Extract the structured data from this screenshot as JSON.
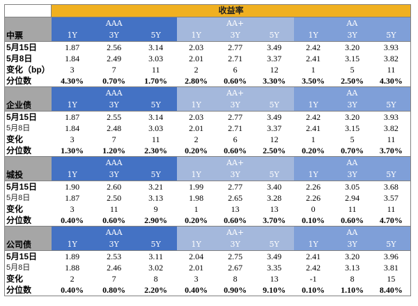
{
  "title": "收益率",
  "grades": [
    "AAA",
    "AA+",
    "AA"
  ],
  "tenors": [
    "1Y",
    "3Y",
    "5Y"
  ],
  "sections": [
    {
      "name": "中票",
      "rows": [
        {
          "label": "5月15日",
          "bold": true,
          "values": [
            "1.87",
            "2.56",
            "3.14",
            "2.03",
            "2.77",
            "3.49",
            "2.42",
            "3.20",
            "3.93"
          ]
        },
        {
          "label": "5月8日",
          "bold": true,
          "values": [
            "1.84",
            "2.49",
            "3.03",
            "2.01",
            "2.71",
            "3.37",
            "2.41",
            "3.15",
            "3.82"
          ]
        },
        {
          "label": "变化（bp）",
          "bold": true,
          "values": [
            "3",
            "7",
            "11",
            "2",
            "6",
            "12",
            "1",
            "5",
            "11"
          ]
        },
        {
          "label": "分位数",
          "bold": true,
          "pct": true,
          "values": [
            "4.30%",
            "0.70%",
            "1.70%",
            "2.80%",
            "0.60%",
            "3.30%",
            "3.50%",
            "2.50%",
            "4.30%"
          ]
        }
      ]
    },
    {
      "name": "企业债",
      "rows": [
        {
          "label": "5月15日",
          "bold": true,
          "values": [
            "1.87",
            "2.55",
            "3.14",
            "2.03",
            "2.77",
            "3.49",
            "2.42",
            "3.20",
            "3.93"
          ]
        },
        {
          "label": "5月8日",
          "bold": false,
          "values": [
            "1.84",
            "2.48",
            "3.03",
            "2.01",
            "2.71",
            "3.37",
            "2.41",
            "3.15",
            "3.82"
          ]
        },
        {
          "label": "变化",
          "bold": true,
          "values": [
            "3",
            "7",
            "11",
            "2",
            "6",
            "12",
            "1",
            "5",
            "11"
          ]
        },
        {
          "label": "分位数",
          "bold": true,
          "pct": true,
          "values": [
            "1.30%",
            "1.20%",
            "2.30%",
            "0.20%",
            "0.60%",
            "2.50%",
            "0.20%",
            "0.70%",
            "3.70%"
          ]
        }
      ]
    },
    {
      "name": "城投",
      "rows": [
        {
          "label": "5月15日",
          "bold": true,
          "values": [
            "1.90",
            "2.60",
            "3.21",
            "1.99",
            "2.77",
            "3.40",
            "2.26",
            "3.05",
            "3.68"
          ]
        },
        {
          "label": "5月8日",
          "bold": false,
          "values": [
            "1.87",
            "2.50",
            "3.13",
            "1.98",
            "2.65",
            "3.28",
            "2.26",
            "2.94",
            "3.57"
          ]
        },
        {
          "label": "变化",
          "bold": true,
          "values": [
            "3",
            "11",
            "9",
            "1",
            "13",
            "13",
            "0",
            "11",
            "11"
          ]
        },
        {
          "label": "分位数",
          "bold": true,
          "pct": true,
          "values": [
            "0.40%",
            "0.60%",
            "2.90%",
            "0.20%",
            "0.60%",
            "3.70%",
            "0.10%",
            "0.60%",
            "4.70%"
          ]
        }
      ]
    },
    {
      "name": "公司债",
      "rows": [
        {
          "label": "5月15日",
          "bold": true,
          "values": [
            "1.89",
            "2.53",
            "3.11",
            "2.04",
            "2.75",
            "3.49",
            "2.41",
            "3.20",
            "3.96"
          ]
        },
        {
          "label": "5月8日",
          "bold": false,
          "values": [
            "1.88",
            "2.46",
            "3.02",
            "2.01",
            "2.67",
            "3.35",
            "2.42",
            "3.13",
            "3.81"
          ]
        },
        {
          "label": "变化",
          "bold": true,
          "values": [
            "2",
            "7",
            "8",
            "3",
            "8",
            "13",
            "-1",
            "8",
            "15"
          ]
        },
        {
          "label": "分位数",
          "bold": true,
          "pct": true,
          "values": [
            "0.40%",
            "0.80%",
            "2.20%",
            "0.40%",
            "0.90%",
            "9.10%",
            "0.10%",
            "1.10%",
            "8.40%"
          ]
        }
      ]
    }
  ]
}
